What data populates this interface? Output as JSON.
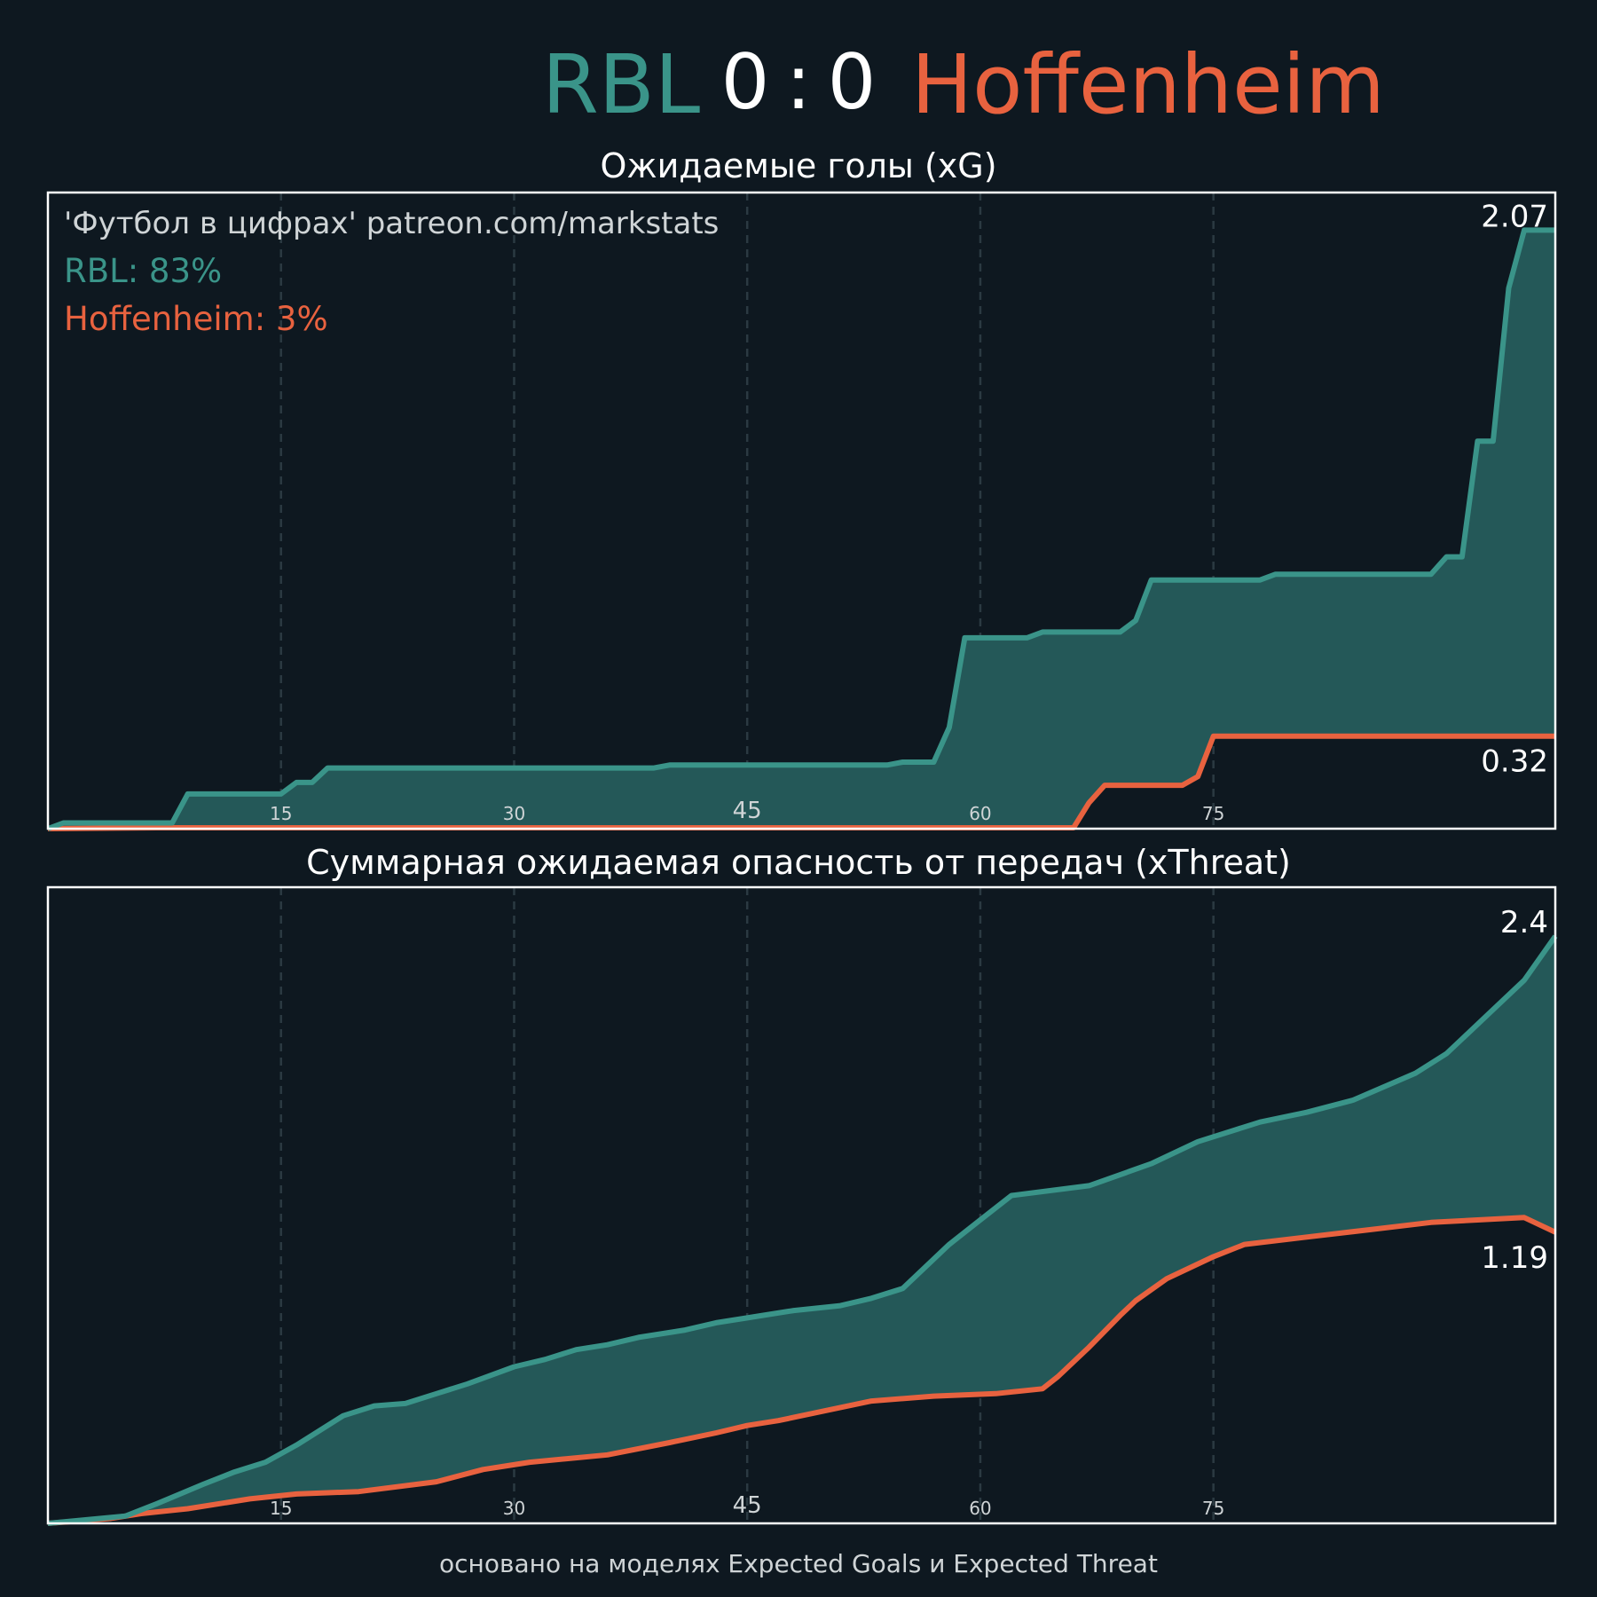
{
  "header": {
    "home_team": "RBL",
    "score_home": "0",
    "score_sep": ":",
    "score_away": "0",
    "away_team": "Hoffenheim"
  },
  "colors": {
    "background": "#0e1820",
    "home": "#3a9489",
    "away": "#e8623f",
    "fill": "#245858",
    "text": "#ffffff",
    "muted": "#cfd4d6",
    "grid": "#2b3a42"
  },
  "watermark": "'Футбол в цифрах' patreon.com/markstats",
  "win_probability": {
    "home_label": "RBL: 83%",
    "away_label": "Hoffenheim: 3%"
  },
  "footer": "основано на моделях Expected Goals и Expected Threat",
  "chart_data": [
    {
      "type": "line",
      "title": "Ожидаемые голы (xG)",
      "xlim": [
        0,
        97
      ],
      "ylim": [
        0,
        2.2
      ],
      "grid": "vertical dashed at 15, 30, 45, 60, 75",
      "xticks": [
        {
          "value": 15,
          "label": "15"
        },
        {
          "value": 30,
          "label": "30"
        },
        {
          "value": 45,
          "label": "45"
        },
        {
          "value": 60,
          "label": "60"
        },
        {
          "value": 75,
          "label": "75"
        }
      ],
      "end_labels": {
        "home": "2.07",
        "away": "0.32"
      },
      "series": [
        {
          "name": "RBL",
          "x": [
            0,
            1,
            8,
            9,
            15,
            16,
            17,
            18,
            39,
            40,
            54,
            55,
            57,
            58,
            59,
            63,
            64,
            69,
            70,
            71,
            78,
            79,
            89,
            90,
            91,
            92,
            93,
            94,
            95,
            97
          ],
          "y": [
            0.0,
            0.02,
            0.02,
            0.12,
            0.12,
            0.16,
            0.16,
            0.21,
            0.21,
            0.22,
            0.22,
            0.23,
            0.23,
            0.35,
            0.66,
            0.66,
            0.68,
            0.68,
            0.72,
            0.86,
            0.86,
            0.88,
            0.88,
            0.94,
            0.94,
            1.34,
            1.34,
            1.87,
            2.07,
            2.07
          ]
        },
        {
          "name": "Hoffenheim",
          "x": [
            0,
            7,
            66,
            67,
            68,
            73,
            74,
            75,
            97
          ],
          "y": [
            0.0,
            0.003,
            0.003,
            0.09,
            0.15,
            0.15,
            0.18,
            0.32,
            0.32
          ]
        }
      ]
    },
    {
      "type": "line",
      "title": "Суммарная ожидаемая опасность от передач (xThreat)",
      "xlim": [
        0,
        97
      ],
      "ylim": [
        0,
        2.6
      ],
      "grid": "vertical dashed at 15, 30, 45, 60, 75",
      "xticks": [
        {
          "value": 15,
          "label": "15"
        },
        {
          "value": 30,
          "label": "30"
        },
        {
          "value": 45,
          "label": "45"
        },
        {
          "value": 60,
          "label": "60"
        },
        {
          "value": 75,
          "label": "75"
        }
      ],
      "end_labels": {
        "home": "2.4",
        "away": "1.19"
      },
      "series": [
        {
          "name": "RBL",
          "x": [
            0,
            5,
            7,
            10,
            12,
            14,
            16,
            19,
            21,
            23,
            25,
            27,
            30,
            32,
            34,
            36,
            38,
            41,
            43,
            45,
            48,
            51,
            53,
            55,
            58,
            60,
            62,
            67,
            71,
            74,
            78,
            81,
            84,
            88,
            90,
            91,
            95,
            97
          ],
          "y": [
            0.0,
            0.03,
            0.08,
            0.16,
            0.21,
            0.25,
            0.32,
            0.44,
            0.48,
            0.49,
            0.53,
            0.57,
            0.64,
            0.67,
            0.71,
            0.73,
            0.76,
            0.79,
            0.82,
            0.84,
            0.87,
            0.89,
            0.92,
            0.96,
            1.14,
            1.24,
            1.34,
            1.38,
            1.47,
            1.56,
            1.64,
            1.68,
            1.73,
            1.84,
            1.92,
            1.98,
            2.22,
            2.4
          ]
        },
        {
          "name": "Hoffenheim",
          "x": [
            0,
            4,
            6,
            9,
            13,
            16,
            20,
            25,
            28,
            31,
            36,
            40,
            43,
            45,
            47,
            53,
            57,
            61,
            64,
            65,
            67,
            69,
            70,
            72,
            75,
            77,
            81,
            85,
            89,
            92,
            95,
            97
          ],
          "y": [
            0.0,
            0.02,
            0.04,
            0.06,
            0.1,
            0.12,
            0.13,
            0.17,
            0.22,
            0.25,
            0.28,
            0.33,
            0.37,
            0.4,
            0.42,
            0.5,
            0.52,
            0.53,
            0.55,
            0.6,
            0.72,
            0.85,
            0.91,
            1.0,
            1.09,
            1.14,
            1.17,
            1.2,
            1.23,
            1.24,
            1.25,
            1.19
          ]
        }
      ]
    }
  ]
}
